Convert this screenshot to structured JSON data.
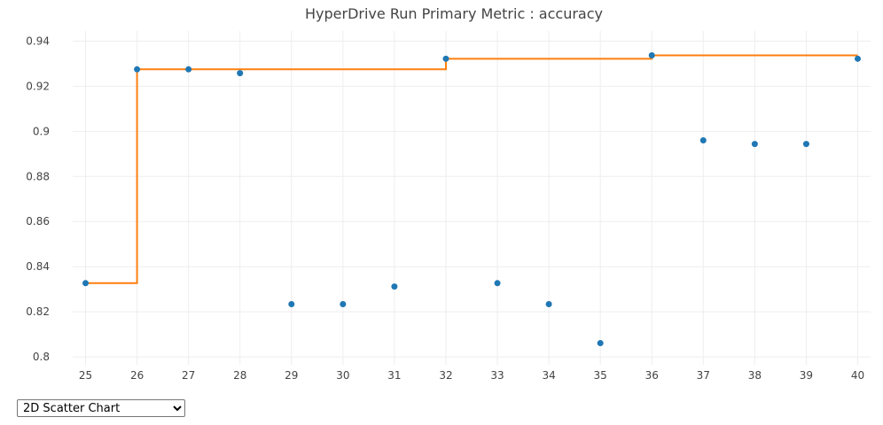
{
  "chart_data": {
    "type": "scatter",
    "title": "HyperDrive Run Primary Metric : accuracy",
    "xlabel": "",
    "ylabel": "",
    "xlim": [
      24.75,
      40.25
    ],
    "ylim": [
      0.7965,
      0.9445
    ],
    "x_ticks": [
      "25",
      "26",
      "27",
      "28",
      "29",
      "30",
      "31",
      "32",
      "33",
      "34",
      "35",
      "36",
      "37",
      "38",
      "39",
      "40"
    ],
    "y_ticks": [
      "0.8",
      "0.82",
      "0.84",
      "0.86",
      "0.88",
      "0.9",
      "0.92",
      "0.94"
    ],
    "grid": true,
    "legend": false,
    "series": [
      {
        "type": "scatter",
        "color": "#1f77b4",
        "x": [
          25,
          26,
          27,
          28,
          29,
          30,
          31,
          32,
          33,
          34,
          35,
          36,
          37,
          38,
          39,
          40
        ],
        "y": [
          0.8327,
          0.9275,
          0.9275,
          0.9258,
          0.8234,
          0.8234,
          0.8312,
          0.9322,
          0.8327,
          0.8234,
          0.8061,
          0.9337,
          0.896,
          0.8944,
          0.8944,
          0.9322
        ]
      },
      {
        "type": "line",
        "shape": "step",
        "color": "#ff7f0e",
        "x": [
          25,
          26,
          27,
          28,
          29,
          30,
          31,
          32,
          33,
          34,
          35,
          36,
          37,
          38,
          39,
          40
        ],
        "y": [
          0.8327,
          0.9275,
          0.9275,
          0.9275,
          0.9275,
          0.9275,
          0.9275,
          0.9322,
          0.9322,
          0.9322,
          0.9322,
          0.9337,
          0.9337,
          0.9337,
          0.9337,
          0.9337
        ]
      }
    ]
  },
  "controls": {
    "chart_type_selected": "2D Scatter Chart"
  }
}
